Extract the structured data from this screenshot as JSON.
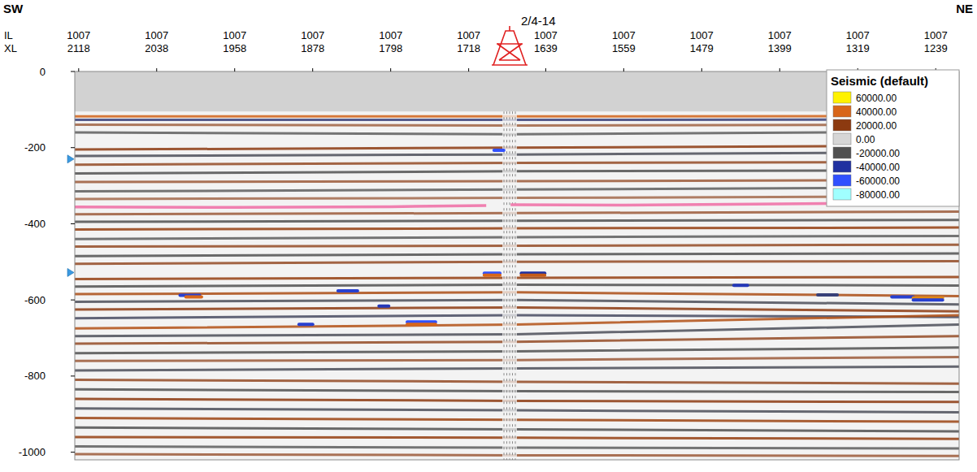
{
  "chart_data": {
    "type": "seismic_section",
    "left_label": "SW",
    "right_label": "NE",
    "inline_label": "IL",
    "inline": 1007,
    "crossline_label": "XL",
    "xlim": [
      2122,
      1215
    ],
    "xticks": [
      2118,
      2038,
      1958,
      1878,
      1798,
      1718,
      1639,
      1559,
      1479,
      1399,
      1319,
      1239
    ],
    "ylim": [
      0,
      -1020
    ],
    "yticks": [
      0,
      -200,
      -400,
      -600,
      -800,
      -1000
    ],
    "data_start": -105,
    "axis_markers": [
      -230,
      -528
    ],
    "well": {
      "name": "2/4-14",
      "xl": 1676
    },
    "colorbar": {
      "title": "Seismic (default)",
      "ticks": [
        {
          "value": 60000,
          "label": "60000.00"
        },
        {
          "value": 40000,
          "label": "40000.00"
        },
        {
          "value": 20000,
          "label": "20000.00"
        },
        {
          "value": 0,
          "label": "0.00"
        },
        {
          "value": -20000,
          "label": "-20000.00"
        },
        {
          "value": -40000,
          "label": "-40000.00"
        },
        {
          "value": -60000,
          "label": "-60000.00"
        },
        {
          "value": -80000,
          "label": "-80000.00"
        }
      ],
      "colors": [
        "#fff200",
        "#d8661a",
        "#8c3a10",
        "#d6d6d6",
        "#505050",
        "#2030a0",
        "#3050ff",
        "#a0ffff"
      ]
    },
    "reflectors": {
      "xl": [
        2122,
        1670,
        1215
      ],
      "items": [
        {
          "time": [
            -118,
            -118,
            -117
          ],
          "amplitude": 38000
        },
        {
          "time": [
            -127,
            -127,
            -126
          ],
          "amplitude": -30000
        },
        {
          "time": [
            -140,
            -142,
            -140
          ],
          "amplitude": 15000
        },
        {
          "time": [
            -160,
            -165,
            -158
          ],
          "amplitude": -18000
        },
        {
          "time": [
            -205,
            -200,
            -195
          ],
          "amplitude": 20000
        },
        {
          "time": [
            -222,
            -218,
            -212
          ],
          "amplitude": -22000
        },
        {
          "time": [
            -245,
            -240,
            -238
          ],
          "amplitude": 18000
        },
        {
          "time": [
            -268,
            -262,
            -260
          ],
          "amplitude": -20000
        },
        {
          "time": [
            -290,
            -288,
            -285
          ],
          "amplitude": 16000
        },
        {
          "time": [
            -315,
            -310,
            -305
          ],
          "amplitude": -18000
        },
        {
          "time": [
            -335,
            -332,
            -328
          ],
          "amplitude": 14000
        },
        {
          "time": [
            -375,
            -372,
            -368
          ],
          "amplitude": 16000
        },
        {
          "time": [
            -395,
            -392,
            -390
          ],
          "amplitude": -20000
        },
        {
          "time": [
            -415,
            -412,
            -410
          ],
          "amplitude": 22000
        },
        {
          "time": [
            -440,
            -435,
            -432
          ],
          "amplitude": -18000
        },
        {
          "time": [
            -460,
            -458,
            -455
          ],
          "amplitude": 18000
        },
        {
          "time": [
            -485,
            -480,
            -478
          ],
          "amplitude": -20000
        },
        {
          "time": [
            -505,
            -500,
            -498
          ],
          "amplitude": 18000
        },
        {
          "time": [
            -545,
            -542,
            -540
          ],
          "amplitude": 22000
        },
        {
          "time": [
            -565,
            -560,
            -562
          ],
          "amplitude": -20000
        },
        {
          "time": [
            -585,
            -580,
            -590
          ],
          "amplitude": 28000
        },
        {
          "time": [
            -605,
            -600,
            -612
          ],
          "amplitude": -22000
        },
        {
          "time": [
            -625,
            -620,
            -630
          ],
          "amplitude": 20000
        },
        {
          "time": [
            -648,
            -640,
            -645
          ],
          "amplitude": -24000
        },
        {
          "time": [
            -675,
            -665,
            -640
          ],
          "amplitude": 30000
        },
        {
          "time": [
            -695,
            -690,
            -665
          ],
          "amplitude": -22000
        },
        {
          "time": [
            -715,
            -710,
            -695
          ],
          "amplitude": 18000
        },
        {
          "time": [
            -740,
            -735,
            -725
          ],
          "amplitude": -20000
        },
        {
          "time": [
            -760,
            -758,
            -750
          ],
          "amplitude": 16000
        },
        {
          "time": [
            -785,
            -780,
            -775
          ],
          "amplitude": -22000
        },
        {
          "time": [
            -810,
            -815,
            -820
          ],
          "amplitude": 18000
        },
        {
          "time": [
            -835,
            -840,
            -842
          ],
          "amplitude": -20000
        },
        {
          "time": [
            -860,
            -865,
            -868
          ],
          "amplitude": 20000
        },
        {
          "time": [
            -885,
            -890,
            -895
          ],
          "amplitude": -22000
        },
        {
          "time": [
            -910,
            -915,
            -920
          ],
          "amplitude": 24000
        },
        {
          "time": [
            -935,
            -940,
            -945
          ],
          "amplitude": -20000
        },
        {
          "time": [
            -960,
            -962,
            -965
          ],
          "amplitude": 22000
        },
        {
          "time": [
            -985,
            -988,
            -990
          ],
          "amplitude": -18000
        },
        {
          "time": [
            -1005,
            -1008,
            -1010
          ],
          "amplitude": 16000
        }
      ]
    },
    "bright_events": [
      {
        "xl": [
          1692,
          1682
        ],
        "time": -207,
        "amplitude": -60000
      },
      {
        "xl": [
          1702,
          1686
        ],
        "time": -530,
        "amplitude": -60000
      },
      {
        "xl": [
          1702,
          1686
        ],
        "time": -535,
        "amplitude": 40000
      },
      {
        "xl": [
          1664,
          1640
        ],
        "time": -530,
        "amplitude": -40000
      },
      {
        "xl": [
          1664,
          1640
        ],
        "time": -535,
        "amplitude": 35000
      },
      {
        "xl": [
          2014,
          1994
        ],
        "time": -588,
        "amplitude": -50000
      },
      {
        "xl": [
          2008,
          1992
        ],
        "time": -592,
        "amplitude": 40000
      },
      {
        "xl": [
          1852,
          1832
        ],
        "time": -576,
        "amplitude": -50000
      },
      {
        "xl": [
          1810,
          1800
        ],
        "time": -616,
        "amplitude": -45000
      },
      {
        "xl": [
          1781,
          1752
        ],
        "time": -658,
        "amplitude": -60000
      },
      {
        "xl": [
          1781,
          1752
        ],
        "time": -664,
        "amplitude": 40000
      },
      {
        "xl": [
          1892,
          1878
        ],
        "time": -664,
        "amplitude": -50000
      },
      {
        "xl": [
          1446,
          1432
        ],
        "time": -562,
        "amplitude": -45000
      },
      {
        "xl": [
          1284,
          1262
        ],
        "time": -592,
        "amplitude": -50000
      },
      {
        "xl": [
          1262,
          1232
        ],
        "time": -595,
        "amplitude": 45000
      },
      {
        "xl": [
          1262,
          1232
        ],
        "time": -600,
        "amplitude": -50000
      },
      {
        "xl": [
          1360,
          1340
        ],
        "time": -587,
        "amplitude": -30000
      }
    ],
    "horizon": {
      "color": "#f080b0",
      "xl": [
        2122,
        1958,
        1798,
        1700,
        1690,
        1675,
        1559,
        1399,
        1215
      ],
      "time": [
        -356,
        -357,
        -355,
        -352,
        null,
        -350,
        -351,
        -348,
        -343
      ]
    }
  }
}
